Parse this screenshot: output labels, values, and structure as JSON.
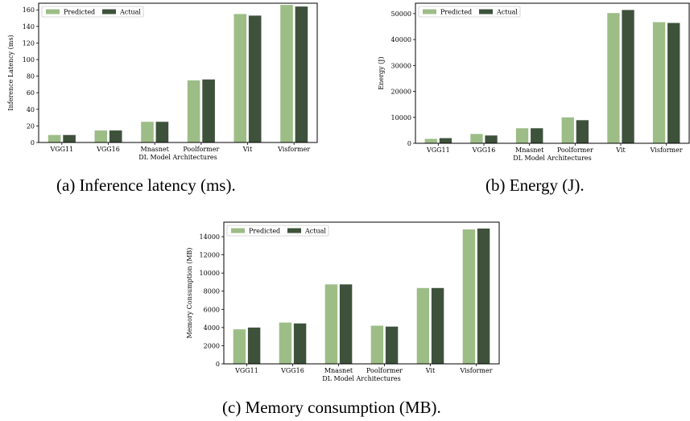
{
  "colors": {
    "predicted": "#9dbd87",
    "actual": "#3e523b"
  },
  "captions": {
    "a": "(a) Inference latency (ms).",
    "b": "(b) Energy (J).",
    "c": "(c) Memory consumption (MB)."
  },
  "chart_data": [
    {
      "type": "bar",
      "id": "latency",
      "categories": [
        "VGG11",
        "VGG16",
        "Mnasnet",
        "Poolformer",
        "Vit",
        "Visformer"
      ],
      "series": [
        {
          "name": "Predicted",
          "values": [
            9,
            14.5,
            25,
            75,
            155,
            166
          ]
        },
        {
          "name": "Actual",
          "values": [
            9,
            14.5,
            25,
            76,
            153,
            164
          ]
        }
      ],
      "xlabel": "DL Model Architectures",
      "ylabel": "Inference Latency (ms)",
      "ylim": [
        0,
        168
      ],
      "yticks": [
        0,
        20,
        40,
        60,
        80,
        100,
        120,
        140,
        160
      ],
      "legend": "top-left",
      "grid": false
    },
    {
      "type": "bar",
      "id": "energy",
      "categories": [
        "VGG11",
        "VGG16",
        "Mnasnet",
        "Poolformer",
        "Vit",
        "Visformer"
      ],
      "series": [
        {
          "name": "Predicted",
          "values": [
            1700,
            3600,
            5800,
            10000,
            50200,
            46700
          ]
        },
        {
          "name": "Actual",
          "values": [
            2000,
            3000,
            5800,
            8900,
            51400,
            46400
          ]
        }
      ],
      "xlabel": "DL Model Architectures",
      "ylabel": "Energy (J)",
      "ylim": [
        0,
        54000
      ],
      "yticks": [
        0,
        10000,
        20000,
        30000,
        40000,
        50000
      ],
      "legend": "top-left",
      "grid": false
    },
    {
      "type": "bar",
      "id": "memory",
      "categories": [
        "VGG11",
        "VGG16",
        "Mnasnet",
        "Poolformer",
        "Vit",
        "Visformer"
      ],
      "series": [
        {
          "name": "Predicted",
          "values": [
            3800,
            4550,
            8750,
            4200,
            8350,
            14800
          ]
        },
        {
          "name": "Actual",
          "values": [
            4000,
            4450,
            8750,
            4100,
            8350,
            14900
          ]
        }
      ],
      "xlabel": "DL Model Architectures",
      "ylabel": "Memory Consumption (MB)",
      "ylim": [
        0,
        15600
      ],
      "yticks": [
        0,
        2000,
        4000,
        6000,
        8000,
        10000,
        12000,
        14000
      ],
      "legend": "top-left",
      "grid": false
    }
  ]
}
